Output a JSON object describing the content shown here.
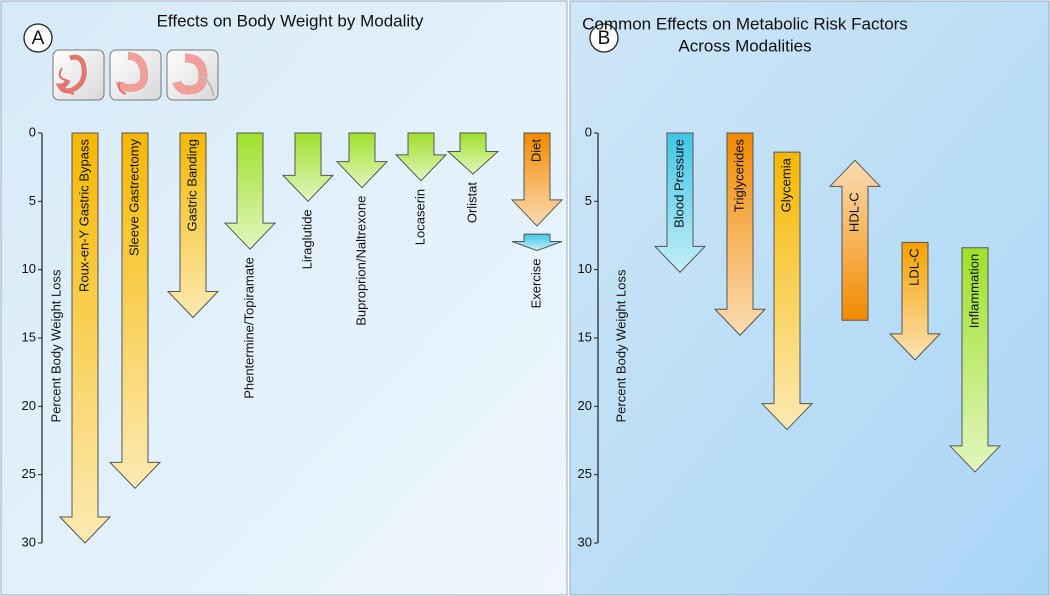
{
  "chart_data": [
    {
      "type": "arrow",
      "label": "A",
      "title": [
        "Effects on Body Weight by Modality"
      ],
      "y_label": "Percent Body Weight Loss",
      "ylim": [
        0,
        30
      ],
      "y_inverted": true,
      "yticks": [
        0,
        5,
        10,
        15,
        20,
        25,
        30
      ],
      "categories": [
        "Roux-en-Y Gastric Bypass",
        "Sleeve Gastrectomy",
        "Gastric Banding",
        "Phentermine/Topiramate",
        "Liraglutide",
        "Buproprion/Naltrexone",
        "Locaserin",
        "Orlistat",
        "Diet",
        "Exercise"
      ],
      "start": [
        0,
        0,
        0,
        0,
        0,
        0,
        0,
        0,
        0,
        7.4
      ],
      "end": [
        30,
        26,
        13.5,
        8.5,
        5,
        4,
        3.5,
        3,
        6.8,
        8.6
      ],
      "colors": [
        "#f5b800",
        "#f5b800",
        "#f5b800",
        "#9ee02a",
        "#9ee02a",
        "#9ee02a",
        "#9ee02a",
        "#9ee02a",
        "#f28a00",
        "#3ec6e6"
      ]
    },
    {
      "type": "arrow",
      "label": "B",
      "title": [
        "Common Effects on Metabolic Risk Factors",
        "Across Modalities"
      ],
      "y_label": "Percent Body Weight Loss",
      "ylim": [
        0,
        30
      ],
      "y_inverted": true,
      "yticks": [
        0,
        5,
        10,
        15,
        20,
        25,
        30
      ],
      "categories": [
        "Blood Pressure",
        "Triglycerides",
        "Glycemia",
        "HDL-C",
        "LDL-C",
        "Inflammation"
      ],
      "start": [
        0,
        0,
        1.4,
        13.7,
        8,
        8.4
      ],
      "end": [
        10.2,
        14.8,
        21.7,
        2,
        16.6,
        24.8
      ],
      "colors": [
        "#3ec6e6",
        "#f28a00",
        "#f5b800",
        "#f28a00",
        "#f5a000",
        "#9ee02a"
      ]
    }
  ]
}
